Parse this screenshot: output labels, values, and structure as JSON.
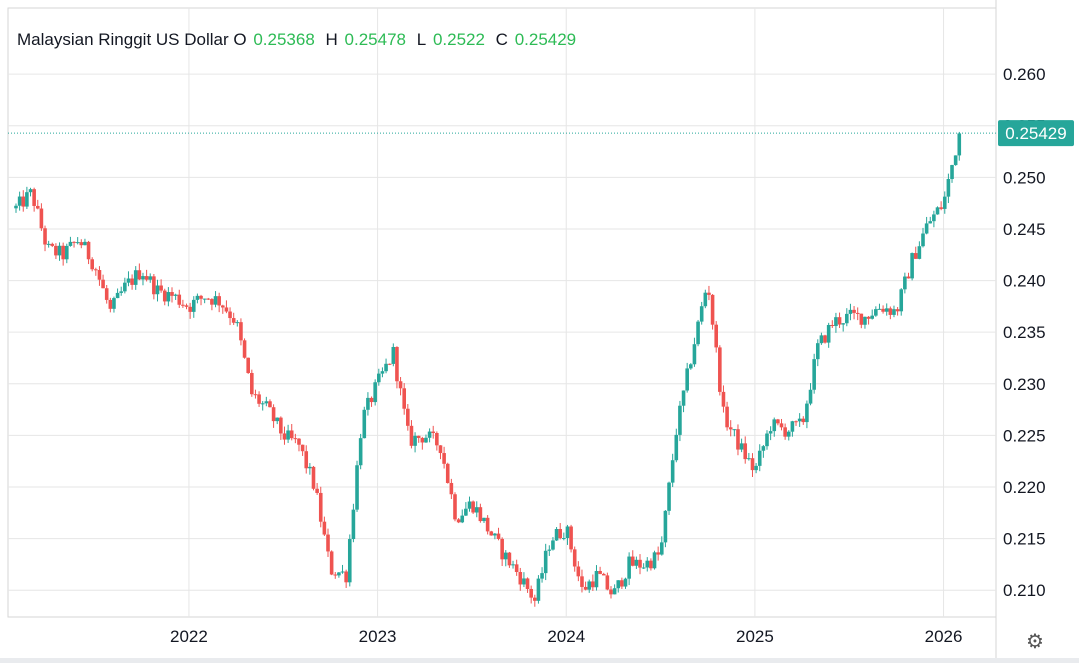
{
  "legend": {
    "title": "Malaysian Ringgit US Dollar",
    "o_label": "O",
    "o_value": "0.25368",
    "h_label": "H",
    "h_value": "0.25478",
    "l_label": "L",
    "l_value": "0.2522",
    "c_label": "C",
    "c_value": "0.25429"
  },
  "colors": {
    "up": "#26a69a",
    "down": "#ef5350",
    "grid": "#e6e6e6",
    "price_tag": "#26a69a",
    "price_line": "#26a69a",
    "legend_values": "#2dbb55",
    "axis_text": "#131722"
  },
  "icons": {
    "settings": "gear-icon"
  },
  "chart_data": {
    "type": "candlestick",
    "title": "Malaysian Ringgit US Dollar",
    "interval": "weekly",
    "x_ticks": [
      "2022",
      "2023",
      "2024",
      "2025",
      "2026"
    ],
    "y_ticks": [
      "0.260",
      "0.255",
      "0.250",
      "0.245",
      "0.240",
      "0.235",
      "0.230",
      "0.225",
      "0.220",
      "0.215",
      "0.210"
    ],
    "ylim": [
      0.2045,
      0.2635
    ],
    "xlim": [
      "2021-02",
      "2026-03"
    ],
    "last_price": "0.25429",
    "grid": true,
    "y_axis_side": "right",
    "close_path": [
      [
        "2021-02",
        0.247
      ],
      [
        "2021-03",
        0.2485
      ],
      [
        "2021-04",
        0.243
      ],
      [
        "2021-05",
        0.2425
      ],
      [
        "2021-06",
        0.244
      ],
      [
        "2021-07",
        0.2415
      ],
      [
        "2021-08",
        0.237
      ],
      [
        "2021-09",
        0.2395
      ],
      [
        "2021-10",
        0.241
      ],
      [
        "2021-11",
        0.239
      ],
      [
        "2021-12",
        0.2385
      ],
      [
        "2022-01",
        0.2375
      ],
      [
        "2022-02",
        0.2385
      ],
      [
        "2022-03",
        0.238
      ],
      [
        "2022-04",
        0.236
      ],
      [
        "2022-05",
        0.229
      ],
      [
        "2022-06",
        0.2275
      ],
      [
        "2022-07",
        0.225
      ],
      [
        "2022-08",
        0.224
      ],
      [
        "2022-09",
        0.22
      ],
      [
        "2022-10",
        0.212
      ],
      [
        "2022-11",
        0.2115
      ],
      [
        "2022-12",
        0.2265
      ],
      [
        "2023-01",
        0.23
      ],
      [
        "2023-02",
        0.233
      ],
      [
        "2023-03",
        0.2245
      ],
      [
        "2023-04",
        0.225
      ],
      [
        "2023-05",
        0.224
      ],
      [
        "2023-06",
        0.217
      ],
      [
        "2023-07",
        0.2185
      ],
      [
        "2023-08",
        0.216
      ],
      [
        "2023-09",
        0.2135
      ],
      [
        "2023-10",
        0.2115
      ],
      [
        "2023-11",
        0.209
      ],
      [
        "2023-12",
        0.215
      ],
      [
        "2024-01",
        0.216
      ],
      [
        "2024-02",
        0.21
      ],
      [
        "2024-03",
        0.2115
      ],
      [
        "2024-04",
        0.2095
      ],
      [
        "2024-05",
        0.2125
      ],
      [
        "2024-06",
        0.2125
      ],
      [
        "2024-07",
        0.2135
      ],
      [
        "2024-08",
        0.2255
      ],
      [
        "2024-09",
        0.233
      ],
      [
        "2024-10",
        0.24
      ],
      [
        "2024-11",
        0.227
      ],
      [
        "2024-12",
        0.224
      ],
      [
        "2025-01",
        0.2215
      ],
      [
        "2025-02",
        0.226
      ],
      [
        "2025-03",
        0.2255
      ],
      [
        "2025-04",
        0.226
      ],
      [
        "2025-05",
        0.2335
      ],
      [
        "2025-06",
        0.236
      ],
      [
        "2025-07",
        0.2365
      ],
      [
        "2025-08",
        0.2365
      ],
      [
        "2025-09",
        0.2375
      ],
      [
        "2025-10",
        0.237
      ],
      [
        "2025-11",
        0.242
      ],
      [
        "2025-12",
        0.2455
      ],
      [
        "2026-01",
        0.2475
      ],
      [
        "2026-02",
        0.2543
      ]
    ]
  }
}
